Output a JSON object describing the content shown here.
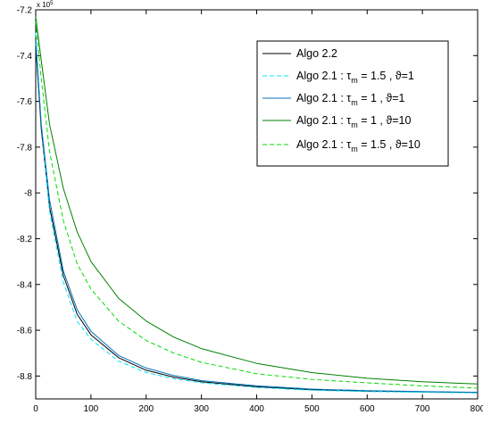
{
  "chart_data": {
    "type": "line",
    "title": "",
    "xlabel": "",
    "ylabel": "",
    "xlim": [
      0,
      800
    ],
    "ylim": [
      -8.9,
      -7.2
    ],
    "y_multiplier_label": "x 10",
    "y_multiplier_exponent": "5",
    "x_ticks": [
      0,
      100,
      200,
      300,
      400,
      500,
      600,
      700,
      800
    ],
    "y_ticks": [
      -7.2,
      -7.4,
      -7.6,
      -7.8,
      -8,
      -8.2,
      -8.4,
      -8.6,
      -8.8
    ],
    "y_tick_labels": [
      "-7.2",
      "-7.4",
      "-7.6",
      "-7.8",
      "-8",
      "-8.2",
      "-8.4",
      "-8.6",
      "-8.8"
    ],
    "grid": false,
    "legend_position": "top-right",
    "x": [
      0,
      10,
      25,
      50,
      75,
      100,
      150,
      200,
      250,
      300,
      400,
      500,
      600,
      700,
      800
    ],
    "series": [
      {
        "name_parts": [
          "Algo 2.2",
          "",
          "",
          "",
          ""
        ],
        "color": "#000000",
        "dash": "solid",
        "values": [
          -7.35,
          -7.72,
          -8.06,
          -8.36,
          -8.53,
          -8.62,
          -8.72,
          -8.775,
          -8.805,
          -8.825,
          -8.847,
          -8.86,
          -8.866,
          -8.869,
          -8.872
        ]
      },
      {
        "name_parts": [
          "Algo 2.1 : ",
          "τ",
          "m",
          " = 1.5 , ",
          "ϑ=1"
        ],
        "color": "#00e5ff",
        "dash": "dashed",
        "values": [
          -7.3,
          -7.7,
          -8.08,
          -8.39,
          -8.56,
          -8.64,
          -8.735,
          -8.785,
          -8.812,
          -8.83,
          -8.85,
          -8.862,
          -8.868,
          -8.871,
          -8.874
        ]
      },
      {
        "name_parts": [
          "Algo 2.1 : ",
          "τ",
          "m",
          " = 1 , ",
          "ϑ=1"
        ],
        "color": "#0072bd",
        "dash": "solid",
        "values": [
          -7.34,
          -7.7,
          -8.03,
          -8.34,
          -8.51,
          -8.605,
          -8.71,
          -8.765,
          -8.798,
          -8.82,
          -8.843,
          -8.857,
          -8.864,
          -8.868,
          -8.871
        ]
      },
      {
        "name_parts": [
          "Algo 2.1 : ",
          "τ",
          "m",
          " = 1 , ",
          "ϑ=10"
        ],
        "color": "#008000",
        "dash": "solid",
        "values": [
          -7.23,
          -7.42,
          -7.7,
          -7.98,
          -8.17,
          -8.3,
          -8.46,
          -8.56,
          -8.63,
          -8.68,
          -8.745,
          -8.785,
          -8.81,
          -8.825,
          -8.835
        ]
      },
      {
        "name_parts": [
          "Algo 2.1 : ",
          "τ",
          "m",
          " = 1.5 , ",
          "ϑ=10"
        ],
        "color": "#00dd00",
        "dash": "dashed",
        "values": [
          -7.25,
          -7.5,
          -7.82,
          -8.12,
          -8.31,
          -8.42,
          -8.56,
          -8.645,
          -8.7,
          -8.74,
          -8.79,
          -8.815,
          -8.83,
          -8.843,
          -8.853
        ]
      }
    ]
  }
}
